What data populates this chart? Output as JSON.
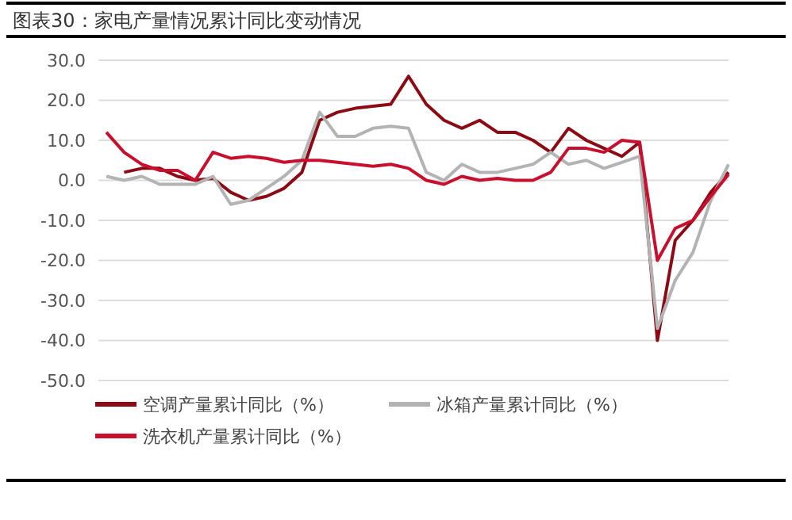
{
  "chart_data": {
    "type": "line",
    "title": "图表30：家电产量情况累计同比变动情况",
    "categories": [
      null,
      null,
      null,
      null,
      null,
      null,
      null,
      null,
      null,
      null,
      null,
      null,
      null,
      null,
      null,
      null,
      null,
      null,
      null,
      null,
      null,
      null,
      null,
      null,
      null,
      null,
      null,
      null,
      null,
      null,
      null,
      null,
      null,
      null,
      null,
      null
    ],
    "series": [
      {
        "name": "空调产量累计同比（%）",
        "color": "#8b0a14",
        "values": [
          null,
          2,
          3,
          3,
          1,
          0,
          0.5,
          -3,
          -5,
          -4,
          -2,
          2,
          15,
          17,
          18,
          18.5,
          19,
          26,
          19,
          15,
          13,
          15,
          12,
          12,
          10,
          7,
          13,
          10,
          8,
          6,
          9.5,
          -40,
          -15,
          -10,
          -3,
          2
        ]
      },
      {
        "name": "冰箱产量累计同比（%）",
        "color": "#b3b3b3",
        "values": [
          1,
          0,
          1,
          -1,
          -1,
          -1,
          1,
          -6,
          -5,
          -2,
          1,
          5,
          17,
          11,
          11,
          13,
          13.5,
          13,
          2,
          0,
          4,
          2,
          2,
          3,
          4,
          7,
          4,
          5,
          3,
          4.5,
          6,
          -37,
          -25,
          -18,
          -5,
          4
        ]
      },
      {
        "name": "洗衣机产量累计同比（%）",
        "color": "#c8102e",
        "values": [
          12,
          7,
          4,
          2.5,
          2.5,
          0,
          7,
          5.5,
          6,
          5.5,
          4.5,
          5,
          5,
          4.5,
          4,
          3.5,
          4,
          3,
          0,
          -1,
          1,
          0,
          0.5,
          0,
          0,
          2,
          8,
          8,
          7,
          10,
          9.5,
          -20,
          -12,
          -10,
          -4,
          1.5
        ]
      }
    ],
    "ylim": [
      -50,
      30
    ],
    "yticks": [
      {
        "value": 30,
        "label": "30.0"
      },
      {
        "value": 20,
        "label": "20.0"
      },
      {
        "value": 10,
        "label": "10.0"
      },
      {
        "value": 0,
        "label": "0.0"
      },
      {
        "value": -10,
        "label": "-10.0"
      },
      {
        "value": -20,
        "label": "-20.0"
      },
      {
        "value": -30,
        "label": "-30.0"
      },
      {
        "value": -40,
        "label": "-40.0"
      },
      {
        "value": -50,
        "label": "-50.0"
      }
    ],
    "grid": "y",
    "legend": "bottom",
    "tick_labels": "y",
    "marker": "none",
    "line_style": "solid"
  }
}
